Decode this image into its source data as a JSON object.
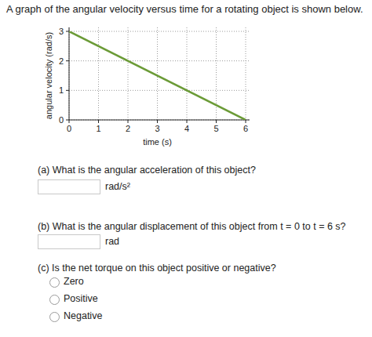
{
  "intro": "A graph of the angular velocity versus time for a rotating object is shown below.",
  "chart_data": {
    "type": "line",
    "x_label": "time (s)",
    "y_label": "angular velocity (rad/s)",
    "x": [
      0,
      6
    ],
    "values": [
      3,
      0
    ],
    "color": "#6b9b37",
    "xlim": [
      0,
      6
    ],
    "ylim": [
      0,
      3
    ],
    "xticks": [
      0,
      1,
      2,
      3,
      4,
      5,
      6
    ],
    "yticks": [
      0,
      1,
      2,
      3
    ],
    "grid": true
  },
  "questions": [
    {
      "prompt": "(a) What is the angular acceleration of this object?",
      "unit": "rad/s²"
    },
    {
      "prompt": "(b) What is the angular displacement of this object from t = 0 to t = 6 s?",
      "unit": "rad"
    },
    {
      "prompt": "(c) Is the net torque on this object positive or negative?",
      "options": [
        "Zero",
        "Positive",
        "Negative"
      ]
    }
  ]
}
